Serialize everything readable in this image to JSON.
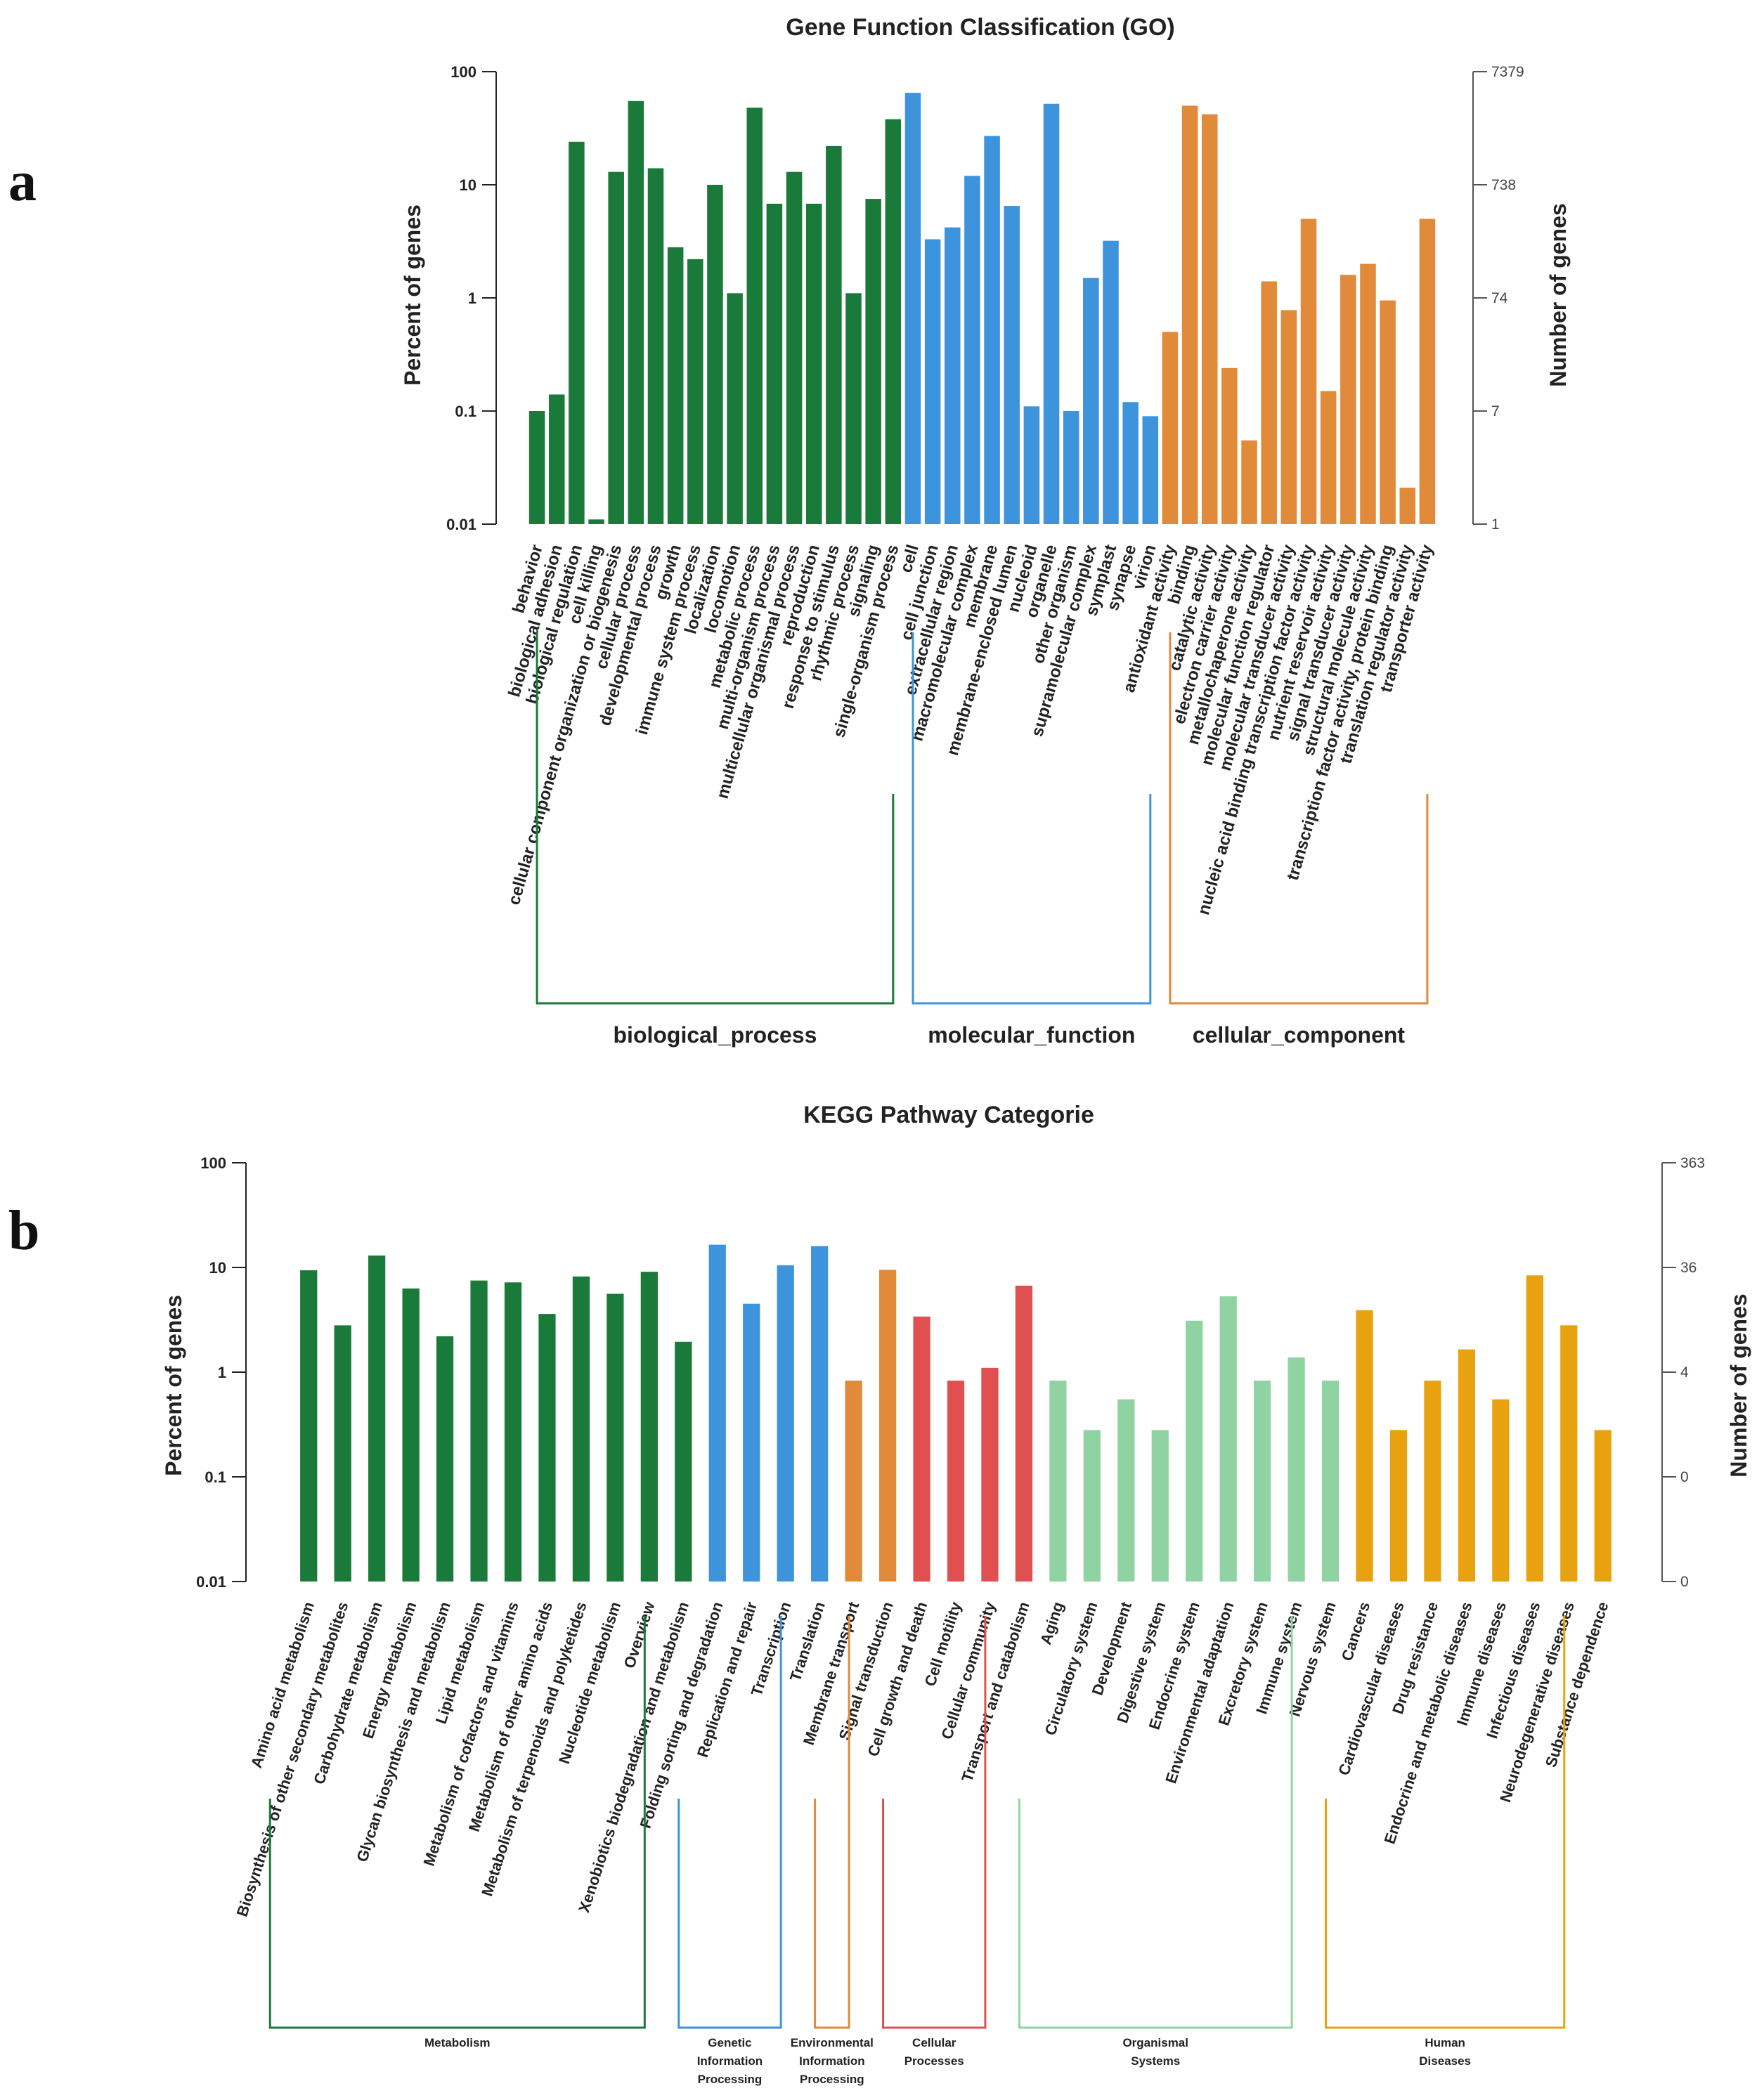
{
  "panels": {
    "a": "a",
    "b": "b"
  },
  "chart_data": [
    {
      "type": "bar",
      "title": "Gene Function Classification (GO)",
      "ylabel": "Percent of genes",
      "ylabel_right": "Number of genes",
      "yscale": "log",
      "ylim": [
        0.01,
        100
      ],
      "yticks": [
        100,
        10,
        1,
        0.1,
        0.01
      ],
      "ytick_labels": [
        "100",
        "10",
        "1",
        "0.1",
        "0.01"
      ],
      "right_ticks": [
        "7379",
        "738",
        "74",
        "7",
        "1"
      ],
      "colors": {
        "biological_process": "#1a7a3a",
        "molecular_function": "#3d94dc",
        "cellular_component": "#e08a3a"
      },
      "groups": [
        {
          "name": "biological_process",
          "categories": [
            "behavior",
            "biological adhesion",
            "biological regulation",
            "cell killing",
            "cellular component organization or biogenesis",
            "cellular process",
            "developmental process",
            "growth",
            "immune system process",
            "localization",
            "locomotion",
            "metabolic process",
            "multi-organism process",
            "multicellular organismal process",
            "reproduction",
            "response to stimulus",
            "rhythmic process",
            "signaling",
            "single-organism process"
          ],
          "values": [
            0.1,
            0.14,
            24,
            0.011,
            13,
            55,
            14,
            2.8,
            2.2,
            10,
            1.1,
            48,
            6.8,
            13,
            6.8,
            22,
            1.1,
            7.5,
            38
          ]
        },
        {
          "name": "molecular_function",
          "categories": [
            "cell",
            "cell junction",
            "extracellular region",
            "macromolecular complex",
            "membrane",
            "membrane-enclosed lumen",
            "nucleoid",
            "organelle",
            "other organism",
            "supramolecular complex",
            "symplast",
            "synapse",
            "virion"
          ],
          "values": [
            65,
            3.3,
            4.2,
            12,
            27,
            6.5,
            0.11,
            52,
            0.1,
            1.5,
            3.2,
            0.12,
            0.09
          ]
        },
        {
          "name": "cellular_component",
          "categories": [
            "antioxidant activity",
            "binding",
            "catalytic activity",
            "electron carrier activity",
            "metallochaperone activity",
            "molecular function regulator",
            "molecular transducer activity",
            "nucleic acid binding transcription factor activity",
            "nutrient reservoir activity",
            "signal transducer activity",
            "structural molecule activity",
            "transcription factor activity, protein binding",
            "translation regulator activity",
            "transporter activity"
          ],
          "values": [
            0.5,
            50,
            42,
            0.24,
            0.055,
            1.4,
            0.78,
            5,
            0.15,
            1.6,
            2,
            0.95,
            0.021,
            5
          ]
        }
      ]
    },
    {
      "type": "bar",
      "title": "KEGG Pathway Categorie",
      "ylabel": "Percent of genes",
      "ylabel_right": "Number of genes",
      "yscale": "log",
      "ylim": [
        0.01,
        100
      ],
      "yticks": [
        100,
        10,
        1,
        0.1,
        0.01
      ],
      "ytick_labels": [
        "100",
        "10",
        "1",
        "0.1",
        "0.01"
      ],
      "right_ticks": [
        "363",
        "36",
        "4",
        "0",
        "0"
      ],
      "groups": [
        {
          "name": "Metabolism",
          "label_lines": [
            "Metabolism"
          ],
          "color": "#1a7a3a",
          "categories": [
            "Amino acid metabolism",
            "Biosynthesis of other secondary metabolites",
            "Carbohydrate metabolism",
            "Energy metabolism",
            "Glycan biosynthesis and metabolism",
            "Lipid metabolism",
            "Metabolism of cofactors and vitamins",
            "Metabolism of other amino acids",
            "Metabolism of terpenoids and polyketides",
            "Nucleotide metabolism",
            "Overview",
            "Xenobiotics biodegradation and metabolism"
          ],
          "values": [
            9.4,
            2.8,
            13,
            6.3,
            2.2,
            7.5,
            7.2,
            3.6,
            8.2,
            5.6,
            9.1,
            1.95
          ]
        },
        {
          "name": "Genetic Information Processing",
          "label_lines": [
            "Genetic",
            "Information",
            "Processing"
          ],
          "color": "#3d94dc",
          "categories": [
            "Folding sorting and degradation",
            "Replication and repair",
            "Transcription",
            "Translation"
          ],
          "values": [
            16.5,
            4.5,
            10.5,
            16
          ]
        },
        {
          "name": "Environmental Information Processing",
          "label_lines": [
            "Environmental",
            "Information",
            "Processing"
          ],
          "color": "#e08a3a",
          "categories": [
            "Membrane transport",
            "Signal transduction"
          ],
          "values": [
            0.83,
            9.5
          ]
        },
        {
          "name": "Cellular Processes",
          "label_lines": [
            "Cellular",
            "Processes"
          ],
          "color": "#e05050",
          "categories": [
            "Cell growth and death",
            "Cell motility",
            "Cellular community",
            "Transport and catabolism"
          ],
          "values": [
            3.4,
            0.83,
            1.1,
            6.7
          ]
        },
        {
          "name": "Organismal Systems",
          "label_lines": [
            "Organismal",
            "Systems"
          ],
          "color": "#8fd3a3",
          "categories": [
            "Aging",
            "Circulatory system",
            "Development",
            "Digestive system",
            "Endocrine system",
            "Environmental adaptation",
            "Excretory system",
            "Immune system",
            "Nervous system"
          ],
          "values": [
            0.83,
            0.28,
            0.55,
            0.28,
            3.1,
            5.3,
            0.83,
            1.38,
            0.83
          ]
        },
        {
          "name": "Human Diseases",
          "label_lines": [
            "Human",
            "Diseases"
          ],
          "color": "#e8a20f",
          "categories": [
            "Cancers",
            "Cardiovascular diseases",
            "Drug resistance",
            "Endocrine and metabolic diseases",
            "Immune diseases",
            "Infectious diseases",
            "Neurodegenerative diseases",
            "Substance dependence"
          ],
          "values": [
            3.9,
            0.28,
            0.83,
            1.65,
            0.55,
            8.4,
            2.8,
            0.28
          ]
        }
      ]
    }
  ]
}
